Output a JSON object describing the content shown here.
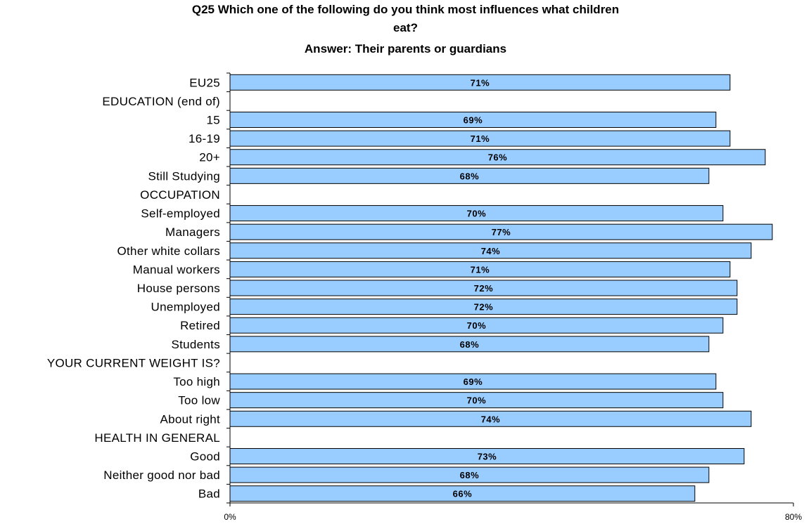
{
  "chart_data": {
    "type": "bar",
    "orientation": "horizontal",
    "title_lines": [
      "Q25 Which one of the following do you think most influences what children",
      "eat?",
      "Answer: Their parents or guardians"
    ],
    "categories": [
      "EU25",
      "EDUCATION (end of)",
      "15",
      "16-19",
      "20+",
      "Still Studying",
      "OCCUPATION",
      "Self-employed",
      "Managers",
      "Other white collars",
      "Manual workers",
      "House persons",
      "Unemployed",
      "Retired",
      "Students",
      "YOUR CURRENT WEIGHT IS?",
      "Too high",
      "Too low",
      "About right",
      "HEALTH IN GENERAL",
      "Good",
      "Neither good nor bad",
      "Bad"
    ],
    "values": [
      71,
      null,
      69,
      71,
      76,
      68,
      null,
      70,
      77,
      74,
      71,
      72,
      72,
      70,
      68,
      null,
      69,
      70,
      74,
      null,
      73,
      68,
      66
    ],
    "value_labels": [
      "71%",
      "",
      "69%",
      "71%",
      "76%",
      "68%",
      "",
      "70%",
      "77%",
      "74%",
      "71%",
      "72%",
      "72%",
      "70%",
      "68%",
      "",
      "69%",
      "70%",
      "74%",
      "",
      "73%",
      "68%",
      "66%"
    ],
    "xlim": [
      0,
      80
    ],
    "x_ticks": [
      "0%",
      "80%"
    ],
    "bar_color": "#99ccff",
    "bar_border_color": "#000000",
    "grid": false,
    "legend": "none"
  }
}
